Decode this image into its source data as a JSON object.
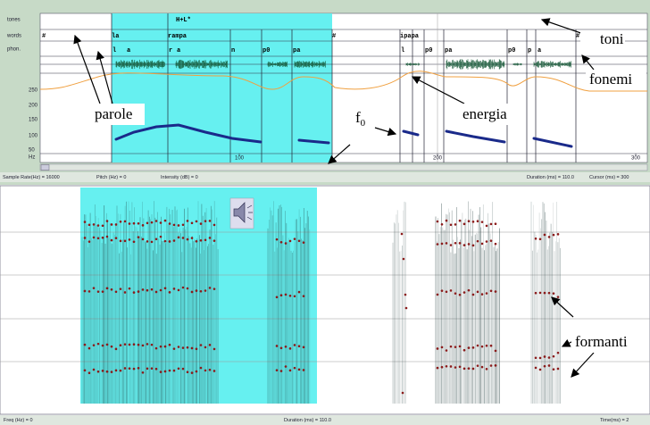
{
  "tier_labels": [
    "tones",
    "words",
    "phon."
  ],
  "tones": [
    "H+L*"
  ],
  "words": [
    "#",
    "la",
    "rampa",
    "#",
    "ipapa",
    "#"
  ],
  "phones": [
    "l",
    "a",
    "r",
    "a",
    "n",
    "p0",
    "pa",
    "l",
    "p0",
    "pa",
    "p0",
    "p",
    "a"
  ],
  "scale": [
    "250",
    "200",
    "150",
    "100",
    "50",
    "Hz"
  ],
  "time_axis": [
    "100",
    "200",
    "300"
  ],
  "status": [
    "Sample Rate(Hz) = 16000",
    "Pitch (Hz) = 0",
    "Intensity (dB) = 0",
    "Duration (ms) = 110.0",
    "Cursor (ms) = 300"
  ],
  "bottom_status": [
    "Freq (Hz) = 0",
    "Duration (ms) = 110.0",
    "Time(ms) = 2"
  ],
  "annotations": {
    "toni": "toni",
    "fonemi": "fonemi",
    "parole": "parole",
    "energia": "energia",
    "f0": {
      "base": "f",
      "sub": "0"
    },
    "formanti": "formanti"
  }
}
